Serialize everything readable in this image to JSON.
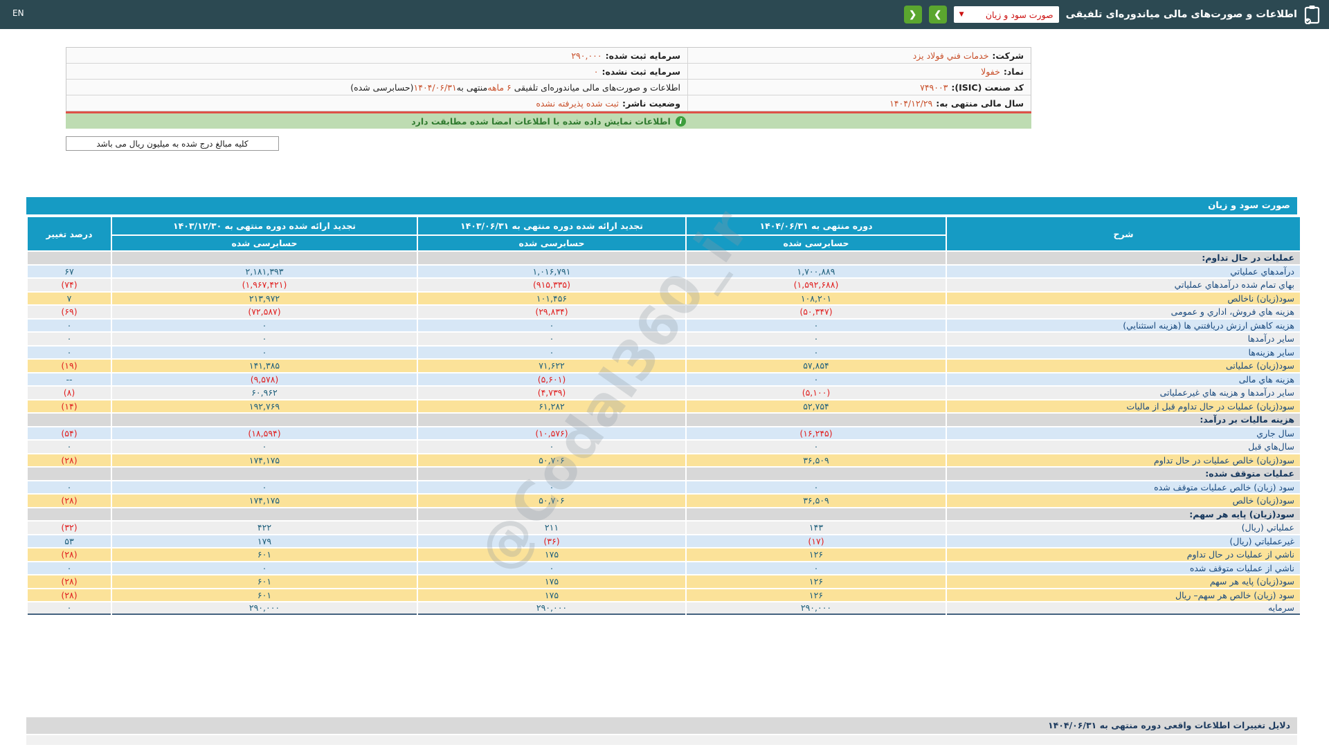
{
  "topbar": {
    "en_label": "EN",
    "title": "اطلاعات و صورت‌های مالی میاندوره‌ای تلفیقی",
    "dropdown_value": "صورت سود و زیان",
    "dropdown_caret": "▼",
    "prev_label": "❮",
    "next_label": "❯"
  },
  "info": {
    "rows": [
      {
        "right": {
          "label": "شرکت:",
          "value": "خدمات فني فولاد يزد"
        },
        "left": {
          "label": "سرمایه ثبت شده:",
          "value": "۲۹۰,۰۰۰"
        }
      },
      {
        "right": {
          "label": "نماد:",
          "value": "خفولا"
        },
        "left": {
          "label": "سرمایه ثبت نشده:",
          "value": "۰"
        }
      },
      {
        "right": {
          "label": "کد صنعت (ISIC):",
          "value": "۷۴۹۰۰۳"
        },
        "left": {
          "statement": {
            "pre": "اطلاعات و صورت‌های مالی میاندوره‌ای تلفیقی ",
            "hl1": "۶ ماهه",
            "mid": "منتهی به",
            "hl2": "۱۴۰۴/۰۶/۳۱",
            "post": "(حسابرسی شده)"
          }
        }
      },
      {
        "right": {
          "label": "سال مالی منتهی به:",
          "value": "۱۴۰۴/۱۲/۲۹"
        },
        "left": {
          "label": "وضعیت ناشر:",
          "value": "ثبت شده پذیرفته نشده"
        }
      }
    ]
  },
  "banner": {
    "icon": "i",
    "text": "اطلاعات نمایش داده شده با اطلاعات امضا شده مطابقت دارد"
  },
  "note": {
    "text": "کلیه مبالغ درج شده به میلیون ریال می باشد"
  },
  "table": {
    "title": "صورت سود و زیان",
    "columns": {
      "sharh": "شرح",
      "col1404": {
        "title": "دوره منتهی به ۱۴۰۴/۰۶/۳۱",
        "sub": "حسابرسی شده"
      },
      "col1403_06": {
        "title": "تجدید ارائه شده دوره منتهی به ۱۴۰۳/۰۶/۳۱",
        "sub": "حسابرسی شده"
      },
      "col1403_12": {
        "title": "تجدید ارائه شده دوره منتهی به ۱۴۰۳/۱۲/۳۰",
        "sub": "حسابرسی شده"
      },
      "pct": "درصد تغییر"
    },
    "rows": [
      {
        "type": "section",
        "label": "عملیات در حال تداوم:"
      },
      {
        "type": "data",
        "variant": "blue",
        "label": "درآمدهاي عملیاتي",
        "v1404": "۱,۷۰۰,۸۸۹",
        "v0631": "۱,۰۱۶,۷۹۱",
        "v1230": "۲,۱۸۱,۳۹۳",
        "pct": "۶۷"
      },
      {
        "type": "data",
        "variant": "gray",
        "label": "بهاي تمام شده درآمدهاي عملیاتي",
        "v1404": "(۱,۵۹۲,۶۸۸)",
        "v0631": "(۹۱۵,۳۳۵)",
        "v1230": "(۱,۹۶۷,۴۲۱)",
        "pct": "(۷۴)"
      },
      {
        "type": "data",
        "variant": "yellow",
        "label": "سود(زیان) ناخالص",
        "v1404": "۱۰۸,۲۰۱",
        "v0631": "۱۰۱,۴۵۶",
        "v1230": "۲۱۳,۹۷۲",
        "pct": "۷"
      },
      {
        "type": "data",
        "variant": "gray",
        "label": "هزینه هاي فروش، اداري و عمومی",
        "v1404": "(۵۰,۳۴۷)",
        "v0631": "(۲۹,۸۳۴)",
        "v1230": "(۷۲,۵۸۷)",
        "pct": "(۶۹)"
      },
      {
        "type": "data",
        "variant": "blue",
        "label": "هزینه کاهش ارزش دریافتني ها (هزینه استثنایي)",
        "v1404": "۰",
        "v0631": "۰",
        "v1230": "۰",
        "pct": "۰"
      },
      {
        "type": "data",
        "variant": "gray",
        "label": "سایر درآمدها",
        "v1404": "۰",
        "v0631": "۰",
        "v1230": "۰",
        "pct": "۰"
      },
      {
        "type": "data",
        "variant": "blue",
        "label": "سایر هزینه‌ها",
        "v1404": "۰",
        "v0631": "۰",
        "v1230": "۰",
        "pct": "۰"
      },
      {
        "type": "data",
        "variant": "yellow",
        "label": "سود(زیان) عملیاتی",
        "v1404": "۵۷,۸۵۴",
        "v0631": "۷۱,۶۲۲",
        "v1230": "۱۴۱,۳۸۵",
        "pct": "(۱۹)"
      },
      {
        "type": "data",
        "variant": "blue",
        "label": "هزینه هاي مالی",
        "v1404": "۰",
        "v0631": "(۵,۶۰۱)",
        "v1230": "(۹,۵۷۸)",
        "pct": "--"
      },
      {
        "type": "data",
        "variant": "gray",
        "label": "سایر درآمدها و هزینه هاي غیرعملیاتی",
        "v1404": "(۵,۱۰۰)",
        "v0631": "(۴,۷۳۹)",
        "v1230": "۶۰,۹۶۲",
        "pct": "(۸)"
      },
      {
        "type": "data",
        "variant": "yellow",
        "label": "سود(زیان) عملیات در حال تداوم قبل از مالیات",
        "v1404": "۵۲,۷۵۴",
        "v0631": "۶۱,۲۸۲",
        "v1230": "۱۹۲,۷۶۹",
        "pct": "(۱۴)"
      },
      {
        "type": "section",
        "label": "هزینه مالیات بر درآمد:"
      },
      {
        "type": "data",
        "variant": "blue",
        "label": "سال جاري",
        "v1404": "(۱۶,۲۴۵)",
        "v0631": "(۱۰,۵۷۶)",
        "v1230": "(۱۸,۵۹۴)",
        "pct": "(۵۴)"
      },
      {
        "type": "data",
        "variant": "gray",
        "label": "سال‌هاي قبل",
        "v1404": "۰",
        "v0631": "۰",
        "v1230": "۰",
        "pct": "۰"
      },
      {
        "type": "data",
        "variant": "yellow",
        "label": "سود(زیان) خالص عملیات در حال تداوم",
        "v1404": "۳۶,۵۰۹",
        "v0631": "۵۰,۷۰۶",
        "v1230": "۱۷۴,۱۷۵",
        "pct": "(۲۸)"
      },
      {
        "type": "section",
        "label": "عملیات متوقف شده:"
      },
      {
        "type": "data",
        "variant": "blue",
        "label": "سود (زیان) خالص عملیات متوقف شده",
        "v1404": "۰",
        "v0631": "۰",
        "v1230": "۰",
        "pct": "۰"
      },
      {
        "type": "data",
        "variant": "yellow",
        "label": "سود(زیان) خالص",
        "v1404": "۳۶,۵۰۹",
        "v0631": "۵۰,۷۰۶",
        "v1230": "۱۷۴,۱۷۵",
        "pct": "(۲۸)"
      },
      {
        "type": "section",
        "label": "سود(زیان) پایه هر سهم:"
      },
      {
        "type": "data",
        "variant": "gray",
        "label": "عملیاتي (ریال)",
        "v1404": "۱۴۳",
        "v0631": "۲۱۱",
        "v1230": "۴۲۲",
        "pct": "(۳۲)"
      },
      {
        "type": "data",
        "variant": "blue",
        "label": "غیرعملیاتي (ریال)",
        "v1404": "(۱۷)",
        "v0631": "(۳۶)",
        "v1230": "۱۷۹",
        "pct": "۵۳"
      },
      {
        "type": "data",
        "variant": "yellow",
        "label": "ناشي از عملیات در حال تداوم",
        "v1404": "۱۲۶",
        "v0631": "۱۷۵",
        "v1230": "۶۰۱",
        "pct": "(۲۸)"
      },
      {
        "type": "data",
        "variant": "blue",
        "label": "ناشي از عملیات متوقف شده",
        "v1404": "۰",
        "v0631": "۰",
        "v1230": "۰",
        "pct": "۰"
      },
      {
        "type": "data",
        "variant": "yellow",
        "label": "سود(زیان) پایه هر سهم",
        "v1404": "۱۲۶",
        "v0631": "۱۷۵",
        "v1230": "۶۰۱",
        "pct": "(۲۸)"
      },
      {
        "type": "data",
        "variant": "yellow",
        "label": "سود (زیان) خالص هر سهم– ریال",
        "v1404": "۱۲۶",
        "v0631": "۱۷۵",
        "v1230": "۶۰۱",
        "pct": "(۲۸)"
      },
      {
        "type": "data",
        "variant": "gray",
        "label": "سرمایه",
        "v1404": "۲۹۰,۰۰۰",
        "v0631": "۲۹۰,۰۰۰",
        "v1230": "۲۹۰,۰۰۰",
        "pct": "۰"
      }
    ]
  },
  "footer": {
    "title": "دلایل تغییرات اطلاعات واقعی دوره منتهی به ۱۴۰۴/۰۶/۳۱"
  },
  "watermark": "@Codal360_ir",
  "colors": {
    "topbar": "#2c4952",
    "accent_blue": "#169bc4",
    "button_green": "#5ba62f",
    "row_blue": "#d7e7f6",
    "row_gray": "#eeeeee",
    "row_yellow": "#fbe299",
    "row_section": "#d8d8d8",
    "value_positive": "#20607c",
    "value_negative": "#e02020",
    "info_value_orange": "#c9512c",
    "banner_green": "#bedcb2",
    "banner_border_red": "#de5148"
  }
}
